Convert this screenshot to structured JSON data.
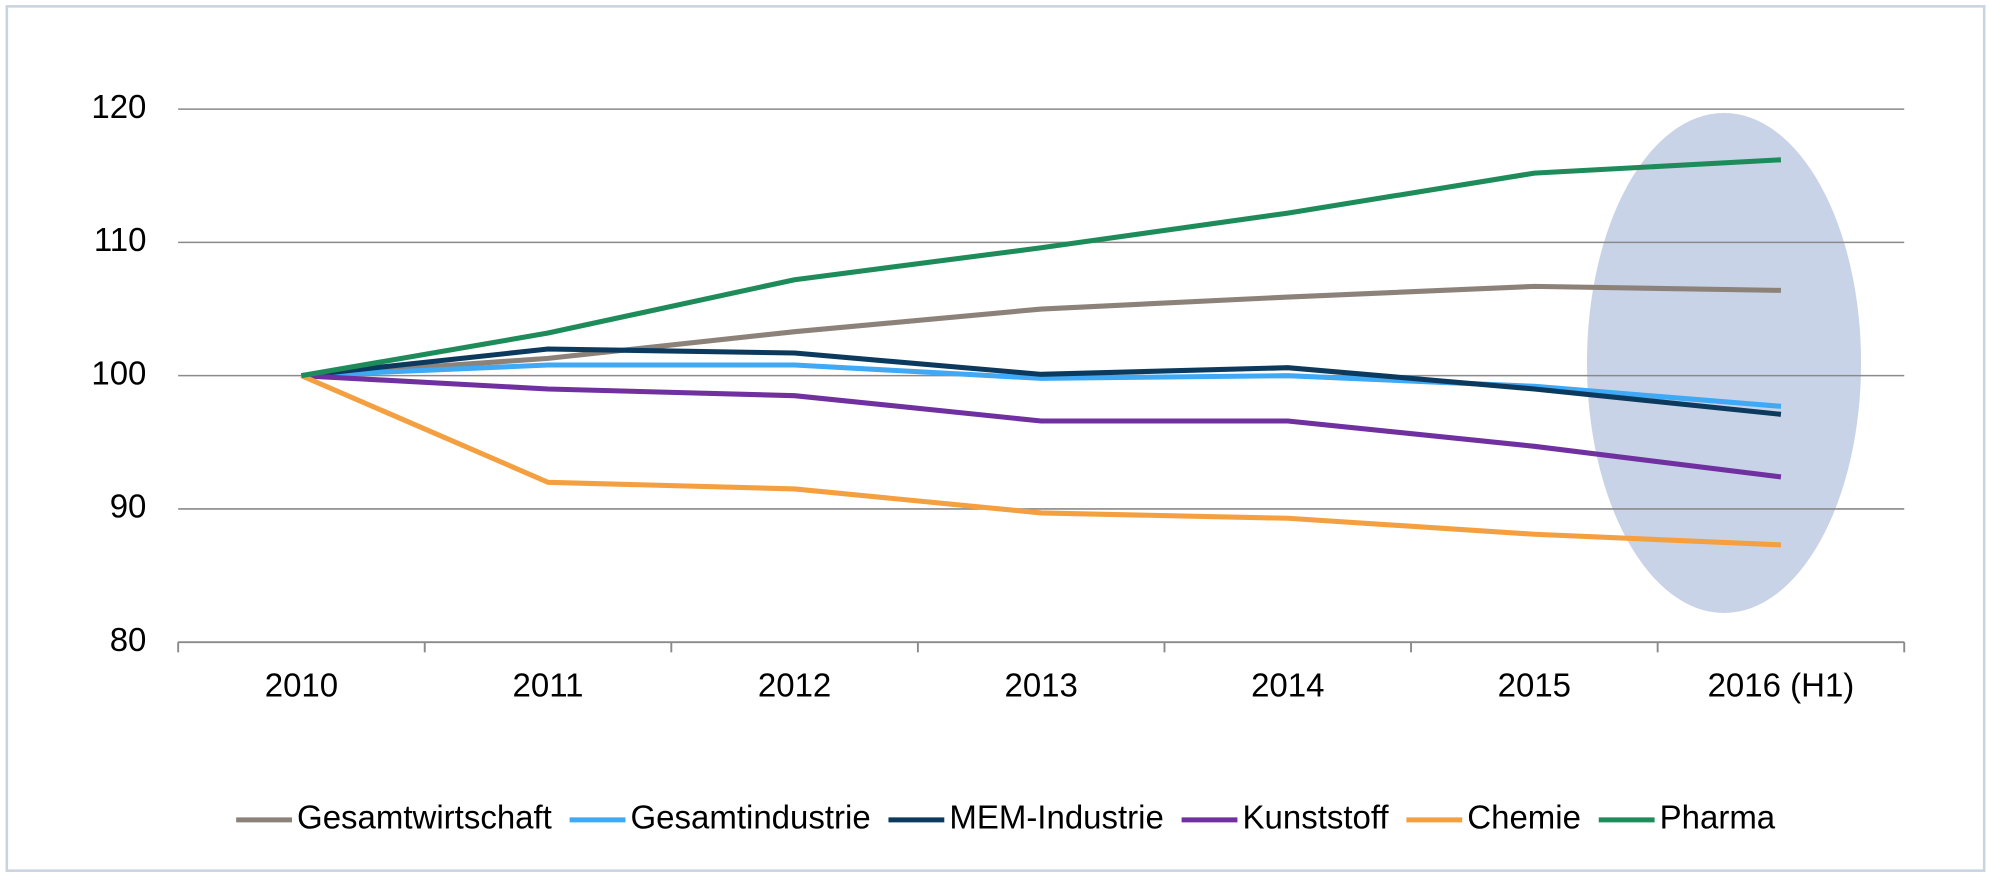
{
  "chart_data": {
    "type": "line",
    "categories": [
      "2010",
      "2011",
      "2012",
      "2013",
      "2014",
      "2015",
      "2016 (H1)"
    ],
    "series": [
      {
        "name": "Gesamtwirtschaft",
        "color": "#8c8279",
        "values": [
          100,
          101.3,
          103.3,
          105.0,
          105.9,
          106.7,
          106.4
        ]
      },
      {
        "name": "Gesamtindustrie",
        "color": "#3fa9f5",
        "values": [
          100,
          100.8,
          100.8,
          99.8,
          100.0,
          99.2,
          97.7
        ]
      },
      {
        "name": "MEM-Industrie",
        "color": "#0b3a5e",
        "values": [
          100,
          102.0,
          101.7,
          100.1,
          100.6,
          99.0,
          97.1
        ]
      },
      {
        "name": "Kunststoff",
        "color": "#7030a0",
        "values": [
          100,
          99.0,
          98.5,
          96.6,
          96.6,
          94.7,
          92.4
        ]
      },
      {
        "name": "Chemie",
        "color": "#f4a040",
        "values": [
          100,
          92.0,
          91.5,
          89.7,
          89.3,
          88.1,
          87.3
        ]
      },
      {
        "name": "Pharma",
        "color": "#1e8c5a",
        "values": [
          100,
          103.2,
          107.2,
          109.6,
          112.2,
          115.2,
          116.2
        ]
      }
    ],
    "ylim": [
      80,
      120
    ],
    "yticks": [
      80,
      90,
      100,
      110,
      120
    ],
    "grid": true,
    "legend": "bottom"
  }
}
